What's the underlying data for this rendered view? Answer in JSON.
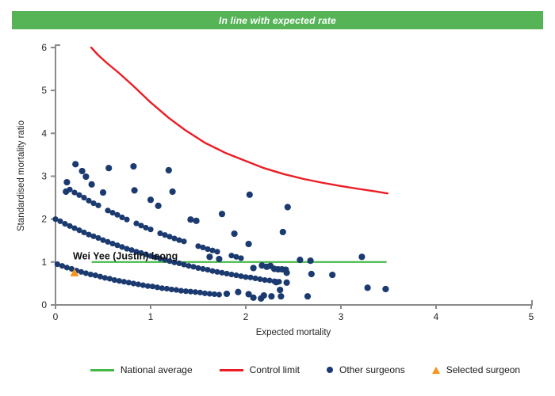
{
  "header": {
    "title": "In line with expected rate",
    "bg_color": "#56b456",
    "text_color": "#ffffff"
  },
  "chart_data": {
    "type": "scatter",
    "xlabel": "Expected mortality",
    "ylabel": "Standardised mortality ratio",
    "xlim": [
      0,
      5
    ],
    "ylim": [
      0,
      6
    ],
    "x_ticks": [
      0,
      1,
      2,
      3,
      4,
      5
    ],
    "y_ticks": [
      0,
      1,
      2,
      3,
      4,
      5,
      6
    ],
    "grid": false,
    "axis_color": "#8a8a8a",
    "tick_label_color": "#262626",
    "annotation": {
      "text": "Wei Yee (Justin) leong",
      "x": 0.2,
      "y": 1.08,
      "color": "#111111"
    },
    "national_average": {
      "label": "National average",
      "color": "#44b944",
      "value": 1.0,
      "x_start": 0.38,
      "x_end": 3.48
    },
    "control_limit": {
      "label": "Control limit",
      "color": "#ed1c24",
      "points": [
        [
          0.375,
          6.0
        ],
        [
          0.45,
          5.82
        ],
        [
          0.54,
          5.64
        ],
        [
          0.67,
          5.4
        ],
        [
          0.81,
          5.12
        ],
        [
          1.0,
          4.72
        ],
        [
          1.19,
          4.36
        ],
        [
          1.36,
          4.08
        ],
        [
          1.57,
          3.78
        ],
        [
          1.78,
          3.55
        ],
        [
          1.97,
          3.38
        ],
        [
          2.19,
          3.19
        ],
        [
          2.4,
          3.05
        ],
        [
          2.6,
          2.94
        ],
        [
          2.8,
          2.85
        ],
        [
          3.0,
          2.77
        ],
        [
          3.2,
          2.7
        ],
        [
          3.35,
          2.65
        ],
        [
          3.49,
          2.6
        ]
      ]
    },
    "other_surgeons": {
      "label": "Other surgeons",
      "color": "#1b3a70",
      "bands": [
        [
          [
            0.02,
            0.95
          ],
          [
            0.07,
            0.91
          ],
          [
            0.12,
            0.87
          ],
          [
            0.17,
            0.84
          ],
          [
            0.22,
            0.8
          ],
          [
            0.27,
            0.77
          ],
          [
            0.32,
            0.74
          ],
          [
            0.37,
            0.71
          ],
          [
            0.42,
            0.69
          ],
          [
            0.47,
            0.66
          ],
          [
            0.52,
            0.63
          ],
          [
            0.57,
            0.61
          ],
          [
            0.62,
            0.58
          ],
          [
            0.67,
            0.56
          ],
          [
            0.72,
            0.54
          ],
          [
            0.77,
            0.52
          ],
          [
            0.82,
            0.5
          ],
          [
            0.87,
            0.48
          ],
          [
            0.92,
            0.46
          ],
          [
            0.97,
            0.44
          ],
          [
            1.02,
            0.43
          ],
          [
            1.07,
            0.41
          ],
          [
            1.12,
            0.39
          ],
          [
            1.17,
            0.38
          ],
          [
            1.22,
            0.36
          ],
          [
            1.27,
            0.35
          ],
          [
            1.32,
            0.33
          ],
          [
            1.37,
            0.32
          ],
          [
            1.42,
            0.31
          ],
          [
            1.47,
            0.3
          ],
          [
            1.52,
            0.29
          ],
          [
            1.57,
            0.27
          ],
          [
            1.62,
            0.26
          ],
          [
            1.67,
            0.25
          ],
          [
            1.72,
            0.24
          ]
        ],
        [
          [
            0.0,
            2.0
          ],
          [
            0.05,
            1.95
          ],
          [
            0.1,
            1.89
          ],
          [
            0.15,
            1.84
          ],
          [
            0.2,
            1.79
          ],
          [
            0.25,
            1.74
          ],
          [
            0.3,
            1.69
          ],
          [
            0.35,
            1.64
          ],
          [
            0.4,
            1.6
          ],
          [
            0.45,
            1.56
          ],
          [
            0.5,
            1.51
          ],
          [
            0.55,
            1.47
          ],
          [
            0.6,
            1.43
          ],
          [
            0.65,
            1.39
          ],
          [
            0.7,
            1.35
          ],
          [
            0.75,
            1.31
          ],
          [
            0.8,
            1.28
          ],
          [
            0.85,
            1.24
          ],
          [
            0.9,
            1.21
          ],
          [
            0.95,
            1.18
          ],
          [
            1.0,
            1.14
          ],
          [
            1.05,
            1.11
          ],
          [
            1.1,
            1.08
          ],
          [
            1.15,
            1.05
          ],
          [
            1.2,
            1.02
          ],
          [
            1.25,
            0.99
          ],
          [
            1.3,
            0.97
          ],
          [
            1.35,
            0.94
          ],
          [
            1.4,
            0.91
          ],
          [
            1.45,
            0.89
          ],
          [
            1.5,
            0.86
          ],
          [
            1.55,
            0.84
          ],
          [
            1.6,
            0.82
          ],
          [
            1.65,
            0.79
          ],
          [
            1.7,
            0.77
          ],
          [
            1.75,
            0.75
          ],
          [
            1.8,
            0.73
          ],
          [
            1.85,
            0.71
          ],
          [
            1.9,
            0.69
          ],
          [
            1.95,
            0.67
          ],
          [
            2.0,
            0.65
          ],
          [
            2.05,
            0.64
          ],
          [
            2.1,
            0.62
          ],
          [
            2.15,
            0.6
          ],
          [
            2.2,
            0.58
          ],
          [
            2.25,
            0.57
          ],
          [
            2.3,
            0.55
          ],
          [
            2.35,
            0.54
          ]
        ],
        [
          [
            0.15,
            2.69
          ],
          [
            0.2,
            2.62
          ],
          [
            0.25,
            2.56
          ],
          [
            0.3,
            2.5
          ],
          [
            0.35,
            2.43
          ],
          [
            0.4,
            2.37
          ],
          [
            0.45,
            2.32
          ],
          [
            0.55,
            2.2
          ],
          [
            0.6,
            2.15
          ],
          [
            0.65,
            2.1
          ],
          [
            0.7,
            2.04
          ],
          [
            0.75,
            1.99
          ],
          [
            0.85,
            1.9
          ],
          [
            0.9,
            1.85
          ],
          [
            0.95,
            1.8
          ],
          [
            1.0,
            1.76
          ],
          [
            1.1,
            1.67
          ],
          [
            1.15,
            1.63
          ],
          [
            1.2,
            1.59
          ],
          [
            1.25,
            1.55
          ],
          [
            1.3,
            1.51
          ],
          [
            1.35,
            1.48
          ],
          [
            1.5,
            1.37
          ],
          [
            1.55,
            1.34
          ],
          [
            1.6,
            1.3
          ],
          [
            1.65,
            1.27
          ],
          [
            1.7,
            1.24
          ],
          [
            1.85,
            1.15
          ],
          [
            1.9,
            1.12
          ],
          [
            1.95,
            1.09
          ]
        ]
      ],
      "scattered": [
        [
          0.12,
          2.86
        ],
        [
          0.11,
          2.64
        ],
        [
          0.21,
          3.28
        ],
        [
          0.28,
          3.12
        ],
        [
          0.32,
          2.99
        ],
        [
          0.38,
          2.81
        ],
        [
          0.5,
          2.62
        ],
        [
          0.56,
          3.19
        ],
        [
          0.82,
          3.23
        ],
        [
          0.83,
          2.67
        ],
        [
          1.0,
          2.45
        ],
        [
          1.08,
          2.31
        ],
        [
          1.19,
          3.14
        ],
        [
          1.23,
          2.64
        ],
        [
          1.42,
          1.99
        ],
        [
          1.48,
          1.96
        ],
        [
          1.75,
          2.12
        ],
        [
          2.04,
          2.57
        ],
        [
          2.44,
          2.28
        ],
        [
          2.39,
          1.7
        ],
        [
          1.88,
          1.66
        ],
        [
          2.03,
          1.42
        ],
        [
          1.62,
          1.12
        ],
        [
          1.72,
          1.07
        ],
        [
          2.08,
          0.86
        ],
        [
          2.17,
          0.92
        ],
        [
          2.22,
          0.89
        ],
        [
          2.26,
          0.91
        ],
        [
          2.3,
          0.84
        ],
        [
          2.34,
          0.83
        ],
        [
          2.38,
          0.83
        ],
        [
          2.42,
          0.82
        ],
        [
          2.43,
          0.75
        ],
        [
          2.57,
          1.05
        ],
        [
          2.68,
          1.03
        ],
        [
          3.22,
          1.12
        ],
        [
          2.69,
          0.72
        ],
        [
          2.91,
          0.7
        ],
        [
          2.32,
          0.53
        ],
        [
          2.43,
          0.52
        ],
        [
          2.36,
          0.35
        ],
        [
          2.19,
          0.22
        ],
        [
          2.27,
          0.2
        ],
        [
          2.37,
          0.2
        ],
        [
          2.65,
          0.2
        ],
        [
          3.28,
          0.4
        ],
        [
          3.47,
          0.37
        ],
        [
          1.8,
          0.26
        ],
        [
          1.92,
          0.3
        ],
        [
          2.03,
          0.25
        ],
        [
          2.08,
          0.17
        ],
        [
          2.16,
          0.15
        ]
      ]
    },
    "selected_surgeon": {
      "label": "Selected surgeon",
      "color": "#f7941d",
      "point": [
        0.2,
        0.76
      ]
    }
  },
  "legend": {
    "items": [
      {
        "label": "National average",
        "swatch": "line",
        "color": "#44b944"
      },
      {
        "label": "Control limit",
        "swatch": "line",
        "color": "#ed1c24"
      },
      {
        "label": "Other surgeons",
        "swatch": "dot",
        "color": "#1b3a70"
      },
      {
        "label": "Selected surgeon",
        "swatch": "triangle",
        "color": "#f7941d"
      }
    ]
  }
}
